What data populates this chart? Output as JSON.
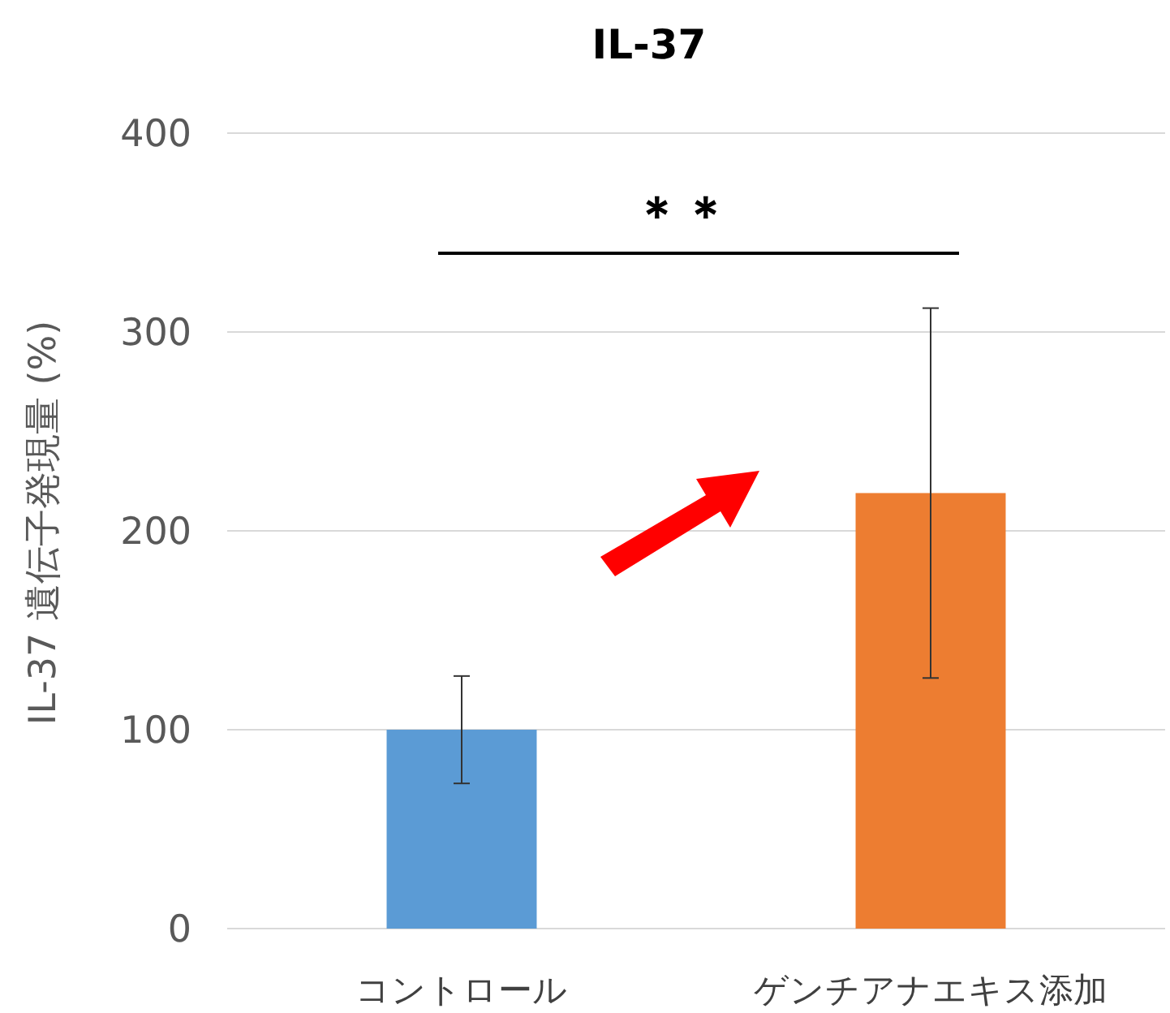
{
  "chart_data": {
    "type": "bar",
    "title": "IL-37",
    "ylabel": "IL-37 遺伝子発現量 (%)",
    "categories": [
      "コントロール",
      "ゲンチアナエキス添加"
    ],
    "values": [
      100,
      219
    ],
    "colors": [
      "#5b9bd5",
      "#ed7d31"
    ],
    "errors": [
      [
        73,
        127
      ],
      [
        126,
        312
      ]
    ],
    "ylim": [
      0,
      400
    ],
    "yticks": [
      0,
      100,
      200,
      300,
      400
    ],
    "grid": "y",
    "annotations": [
      "＊＊"
    ]
  }
}
